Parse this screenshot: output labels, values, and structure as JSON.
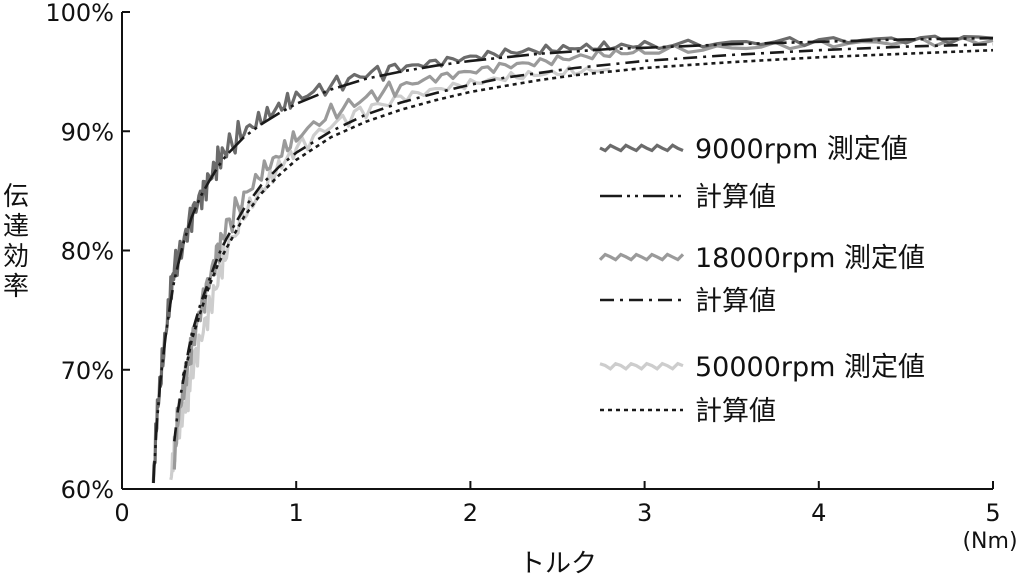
{
  "chart_data": {
    "type": "line",
    "title": "",
    "xlabel": "トルク",
    "xunit": "(Nm)",
    "ylabel": "伝達効率",
    "xlim": [
      0,
      5
    ],
    "ylim": [
      60,
      100
    ],
    "xticks": [
      "0",
      "1",
      "2",
      "3",
      "4",
      "5"
    ],
    "yticks": [
      "60%",
      "70%",
      "80%",
      "90%",
      "100%"
    ],
    "grid": false,
    "legend_position": "center-right",
    "series": [
      {
        "name": "9000rpm 測定値",
        "kind": "measured",
        "color": "#6b6b6b",
        "x": [
          0.18,
          0.2,
          0.22,
          0.25,
          0.28,
          0.3,
          0.35,
          0.4,
          0.45,
          0.5,
          0.55,
          0.6,
          0.7,
          0.8,
          0.9,
          1.0,
          1.2,
          1.4,
          1.6,
          1.8,
          2.0,
          2.2,
          2.4,
          2.6,
          2.8,
          3.0,
          3.5,
          4.0,
          4.5,
          5.0
        ],
        "y": [
          60.5,
          66.0,
          69.0,
          73.0,
          76.5,
          78.5,
          80.5,
          83.0,
          84.5,
          86.0,
          87.5,
          88.5,
          90.0,
          91.0,
          92.0,
          92.8,
          93.8,
          94.8,
          95.3,
          95.8,
          96.2,
          96.6,
          96.8,
          97.0,
          97.1,
          97.2,
          97.4,
          97.6,
          97.7,
          97.8
        ]
      },
      {
        "name": "計算値",
        "kind": "calculated",
        "color": "#1a1a1a",
        "dash": "22 5 3 5 3 5",
        "x": [
          0.18,
          0.2,
          0.22,
          0.25,
          0.28,
          0.3,
          0.35,
          0.4,
          0.45,
          0.5,
          0.55,
          0.6,
          0.7,
          0.8,
          0.9,
          1.0,
          1.2,
          1.4,
          1.6,
          1.8,
          2.0,
          2.2,
          2.4,
          2.6,
          2.8,
          3.0,
          3.5,
          4.0,
          4.5,
          5.0
        ],
        "y": [
          60.5,
          65.5,
          69.0,
          72.8,
          75.8,
          77.5,
          80.5,
          82.8,
          84.5,
          85.8,
          87.0,
          88.0,
          89.5,
          90.6,
          91.5,
          92.3,
          93.5,
          94.4,
          95.0,
          95.5,
          95.9,
          96.2,
          96.5,
          96.7,
          96.9,
          97.0,
          97.3,
          97.5,
          97.7,
          97.8
        ]
      },
      {
        "name": "18000rpm 測定値",
        "kind": "measured",
        "color": "#9a9a9a",
        "x": [
          0.3,
          0.32,
          0.35,
          0.38,
          0.4,
          0.45,
          0.5,
          0.55,
          0.6,
          0.7,
          0.8,
          0.9,
          1.0,
          1.2,
          1.4,
          1.6,
          1.8,
          2.0,
          2.2,
          2.4,
          2.6,
          2.8,
          3.0,
          3.5,
          4.0,
          4.5,
          5.0
        ],
        "y": [
          62.0,
          66.0,
          68.0,
          70.5,
          72.0,
          75.0,
          77.5,
          80.0,
          82.0,
          84.5,
          86.5,
          88.0,
          89.5,
          91.5,
          92.8,
          93.8,
          94.5,
          95.0,
          95.5,
          95.8,
          96.2,
          96.5,
          96.7,
          97.0,
          97.3,
          97.5,
          97.6
        ]
      },
      {
        "name": "計算値",
        "kind": "calculated",
        "color": "#1a1a1a",
        "dash": "14 6 3 6",
        "x": [
          0.3,
          0.32,
          0.35,
          0.38,
          0.4,
          0.45,
          0.5,
          0.55,
          0.6,
          0.7,
          0.8,
          0.9,
          1.0,
          1.2,
          1.4,
          1.6,
          1.8,
          2.0,
          2.2,
          2.4,
          2.6,
          2.8,
          3.0,
          3.5,
          4.0,
          4.5,
          5.0
        ],
        "y": [
          64.0,
          66.5,
          69.0,
          71.5,
          73.0,
          75.5,
          77.5,
          79.5,
          81.0,
          83.5,
          85.5,
          87.0,
          88.2,
          90.0,
          91.4,
          92.4,
          93.2,
          93.9,
          94.5,
          94.9,
          95.3,
          95.6,
          95.9,
          96.4,
          96.8,
          97.1,
          97.3
        ]
      },
      {
        "name": "50000rpm 測定値",
        "kind": "measured",
        "color": "#cdcdcd",
        "x": [
          0.28,
          0.3,
          0.32,
          0.35,
          0.38,
          0.4,
          0.45,
          0.5,
          0.55,
          0.6,
          0.7,
          0.8,
          0.9,
          1.0,
          1.2,
          1.4,
          1.6,
          1.8,
          2.0,
          2.2,
          2.4,
          2.6,
          2.8
        ],
        "y": [
          61.0,
          63.0,
          65.0,
          66.5,
          68.0,
          70.0,
          72.5,
          75.0,
          77.5,
          80.0,
          83.0,
          85.0,
          87.0,
          88.5,
          90.5,
          91.8,
          92.8,
          93.5,
          94.0,
          94.5,
          94.8,
          95.0,
          95.2
        ]
      },
      {
        "name": "計算値",
        "kind": "calculated",
        "color": "#1a1a1a",
        "dash": "4 4",
        "x": [
          0.35,
          0.38,
          0.4,
          0.45,
          0.5,
          0.55,
          0.6,
          0.7,
          0.8,
          0.9,
          1.0,
          1.2,
          1.4,
          1.6,
          1.8,
          2.0,
          2.2,
          2.4,
          2.6,
          2.8,
          3.0,
          3.5,
          4.0,
          4.5,
          5.0
        ],
        "y": [
          69.5,
          71.0,
          72.5,
          74.8,
          77.0,
          78.8,
          80.2,
          82.8,
          84.8,
          86.3,
          87.6,
          89.5,
          90.8,
          91.8,
          92.6,
          93.3,
          93.8,
          94.3,
          94.7,
          95.0,
          95.3,
          95.8,
          96.2,
          96.5,
          96.8
        ]
      }
    ]
  }
}
